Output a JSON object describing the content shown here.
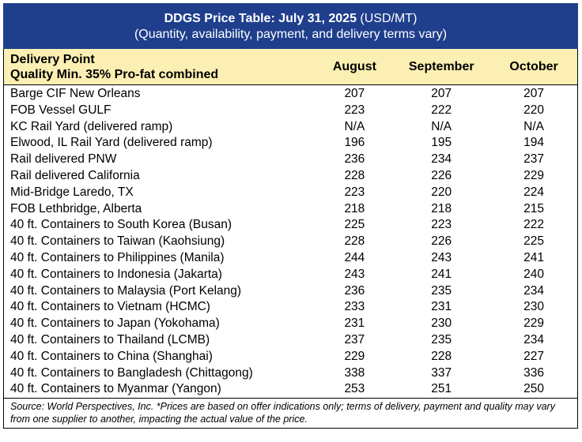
{
  "title": {
    "bold_part": "DDGS Price Table: July 31, 2025",
    "unit_part": " (USD/MT)",
    "subtitle": "(Quantity, availability, payment, and delivery terms vary)"
  },
  "header": {
    "line1": "Delivery Point",
    "line2": "Quality Min. 35% Pro-fat combined",
    "columns": [
      "August",
      "September",
      "October"
    ]
  },
  "rows": [
    {
      "name": "Barge CIF New Orleans",
      "values": [
        "207",
        "207",
        "207"
      ]
    },
    {
      "name": "FOB Vessel GULF",
      "values": [
        "223",
        "222",
        "220"
      ]
    },
    {
      "name": "KC Rail Yard (delivered ramp)",
      "values": [
        "N/A",
        "N/A",
        "N/A"
      ]
    },
    {
      "name": "Elwood, IL Rail Yard (delivered ramp)",
      "values": [
        "196",
        "195",
        "194"
      ]
    },
    {
      "name": "Rail delivered PNW",
      "values": [
        "236",
        "234",
        "237"
      ]
    },
    {
      "name": "Rail delivered California",
      "values": [
        "228",
        "226",
        "229"
      ]
    },
    {
      "name": "Mid-Bridge Laredo, TX",
      "values": [
        "223",
        "220",
        "224"
      ]
    },
    {
      "name": "FOB Lethbridge, Alberta",
      "values": [
        "218",
        "218",
        "215"
      ]
    },
    {
      "name": "40 ft. Containers to South Korea (Busan)",
      "values": [
        "225",
        "223",
        "222"
      ]
    },
    {
      "name": "40 ft. Containers to Taiwan (Kaohsiung)",
      "values": [
        "228",
        "226",
        "225"
      ]
    },
    {
      "name": "40 ft. Containers to Philippines (Manila)",
      "values": [
        "244",
        "243",
        "241"
      ]
    },
    {
      "name": "40 ft. Containers to Indonesia (Jakarta)",
      "values": [
        "243",
        "241",
        "240"
      ]
    },
    {
      "name": "40 ft. Containers to Malaysia (Port Kelang)",
      "values": [
        "236",
        "235",
        "234"
      ]
    },
    {
      "name": "40 ft. Containers to Vietnam (HCMC)",
      "values": [
        "233",
        "231",
        "230"
      ]
    },
    {
      "name": "40 ft. Containers to Japan (Yokohama)",
      "values": [
        "231",
        "230",
        "229"
      ]
    },
    {
      "name": "40 ft. Containers to Thailand (LCMB)",
      "values": [
        "237",
        "235",
        "234"
      ]
    },
    {
      "name": "40 ft. Containers to China (Shanghai)",
      "values": [
        "229",
        "228",
        "227"
      ]
    },
    {
      "name": "40 ft. Containers to Bangladesh (Chittagong)",
      "values": [
        "338",
        "337",
        "336"
      ]
    },
    {
      "name": "40 ft. Containers to Myanmar (Yangon)",
      "values": [
        "253",
        "251",
        "250"
      ]
    }
  ],
  "footer": "Source: World Perspectives, Inc. *Prices are based on offer indications only; terms of delivery, payment and quality may vary from one supplier to another, impacting the actual value of the price.",
  "colors": {
    "title_bg": "#1f3f8c",
    "header_bg": "#fcefb3"
  }
}
